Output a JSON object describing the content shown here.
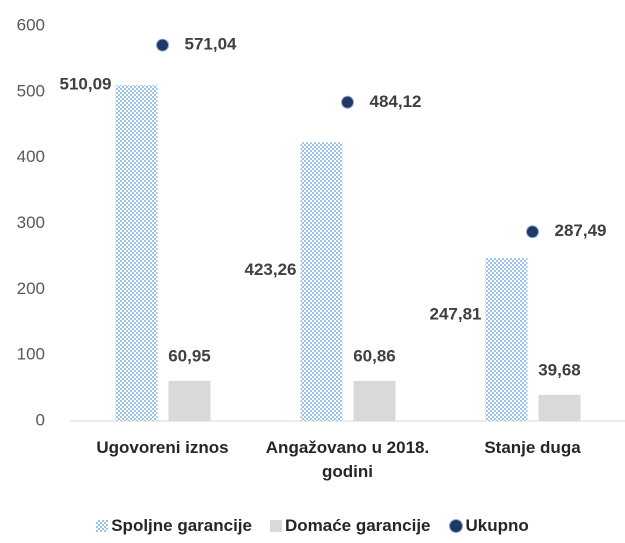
{
  "chart_data": {
    "type": "bar",
    "categories": [
      "Ugovoreni iznos",
      "Angažovano u 2018. godini",
      "Stanje duga"
    ],
    "series": [
      {
        "name": "Spoljne garancije",
        "color": "#9dc3e6",
        "values": [
          510.09,
          423.26,
          247.81
        ],
        "value_labels": [
          "510,09",
          "423,26",
          "247,81"
        ]
      },
      {
        "name": "Domaće garancije",
        "color": "#d9d9d9",
        "values": [
          60.95,
          60.86,
          39.68
        ],
        "value_labels": [
          "60,95",
          "60,86",
          "39,68"
        ]
      },
      {
        "name": "Ukupno",
        "color": "#203864",
        "marker": "circle",
        "values": [
          571.04,
          484.12,
          287.49
        ],
        "value_labels": [
          "571,04",
          "484,12",
          "287,49"
        ]
      }
    ],
    "ylim": [
      0,
      600
    ],
    "yticks": [
      0,
      100,
      200,
      300,
      400,
      500,
      600
    ],
    "grid": false,
    "legend": "bottom"
  }
}
